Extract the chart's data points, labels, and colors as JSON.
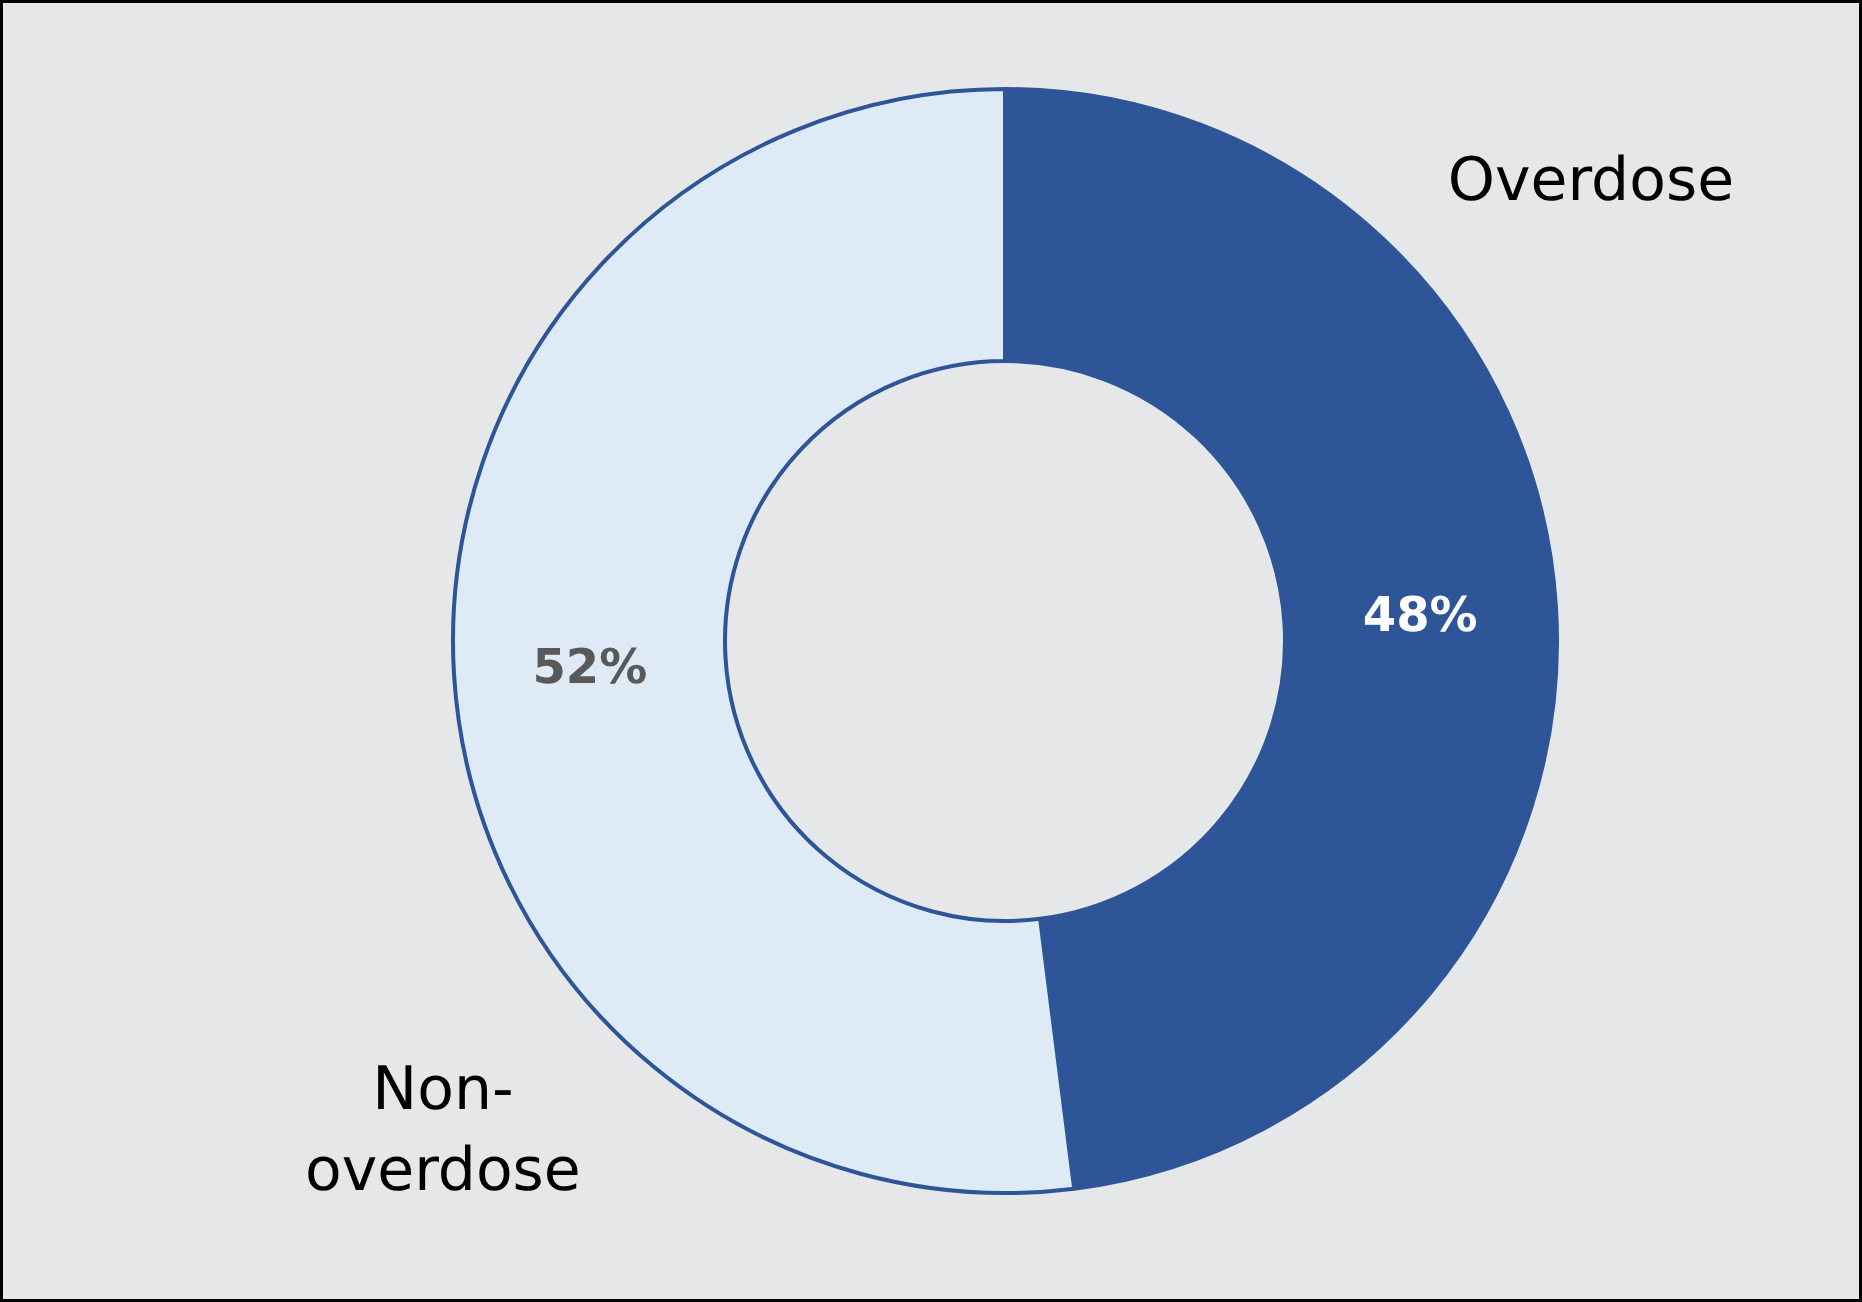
{
  "chart_data": {
    "type": "donut",
    "categories": [
      "Overdose",
      "Non-overdose"
    ],
    "values": [
      48,
      52
    ],
    "colors": [
      "#2e5597",
      "#deeaf6"
    ],
    "value_labels": [
      "48%",
      "52%"
    ]
  }
}
